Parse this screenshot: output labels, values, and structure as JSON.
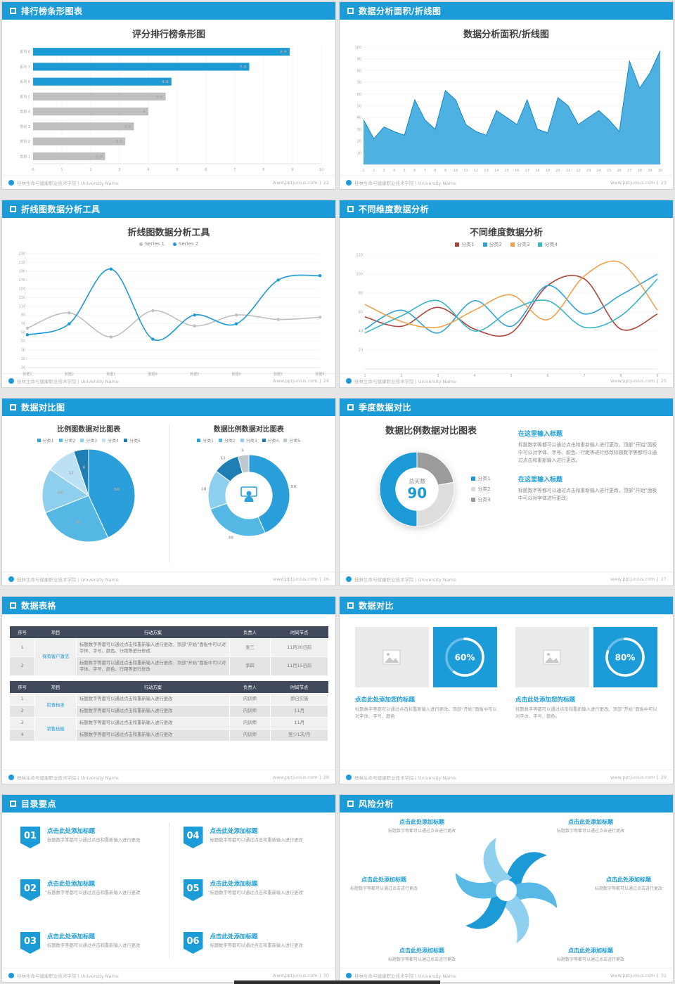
{
  "page": {
    "background": "#E6E6E6",
    "accent": "#1B9BD8"
  },
  "footer": {
    "org": "桂林生命与健康职业技术学院 | University Name",
    "site": "www.pptjunius.com"
  },
  "slides": [
    {
      "header": "排行榜条形图表",
      "page_no": "22",
      "title": "评分排行榜条形图",
      "chart_data": {
        "type": "barh",
        "title": "评分排行榜条形图",
        "categories": [
          "系列 8",
          "系列 7",
          "系列 6",
          "系列 5",
          "类别 4",
          "类别 3",
          "类别 2",
          "类别 1"
        ],
        "values": [
          8.9,
          7.5,
          4.8,
          4.6,
          4,
          3.5,
          3.2,
          2.5
        ],
        "colors": [
          "#1C9AD6",
          "#1C9AD6",
          "#1C9AD6",
          "#BFBFBF",
          "#BFBFBF",
          "#BFBFBF",
          "#BFBFBF",
          "#BFBFBF"
        ],
        "label_colors": [
          "#FFFFFF",
          "#FFFFFF",
          "#FFFFFF",
          "#737373",
          "#737373",
          "#737373",
          "#737373",
          "#737373"
        ],
        "xlim": [
          0,
          10
        ],
        "xticks": [
          0,
          1,
          2,
          3,
          4,
          5,
          6,
          7,
          8,
          9,
          10
        ]
      }
    },
    {
      "header": "数据分析面积/折线图",
      "page_no": "23",
      "title": "数据分析面积/折线图",
      "chart_data": {
        "type": "area",
        "title": "数据分析面积/折线图",
        "x": [
          "1",
          "2",
          "3",
          "4",
          "5",
          "6",
          "7",
          "8",
          "9",
          "10",
          "11",
          "12",
          "13",
          "14",
          "15",
          "16",
          "17",
          "18",
          "19",
          "20",
          "21",
          "22",
          "23",
          "24",
          "25",
          "26",
          "27",
          "28",
          "29",
          "30"
        ],
        "values": [
          38,
          22,
          32,
          28,
          25,
          55,
          38,
          30,
          63,
          55,
          34,
          28,
          25,
          46,
          40,
          34,
          55,
          30,
          27,
          57,
          50,
          34,
          40,
          46,
          38,
          28,
          88,
          65,
          78,
          97
        ],
        "color": "#2FA3DC",
        "ylim": [
          0,
          100
        ],
        "yticks": [
          10,
          20,
          30,
          40,
          50,
          60,
          70,
          80,
          90,
          100
        ]
      }
    },
    {
      "header": "折线图数据分析工具",
      "page_no": "24",
      "title": "折线图数据分析工具",
      "chart_data": {
        "type": "line",
        "title": "折线图数据分析工具",
        "x_labels": [
          "数据1",
          "数据2",
          "数据3",
          "数据4",
          "数据5",
          "数据6",
          "数据7",
          "数据8"
        ],
        "ylim": [
          -30,
          230
        ],
        "yticks": [
          -30,
          -10,
          10,
          30,
          50,
          70,
          90,
          110,
          130,
          150,
          170,
          190,
          210,
          230
        ],
        "smooth": true,
        "markers": true,
        "series": [
          {
            "name": "Series 1",
            "color": "#BFBFBF",
            "values": [
              60,
              95,
              40,
              100,
              65,
              90,
              80,
              85
            ]
          },
          {
            "name": "Series 2",
            "color": "#1C9AD6",
            "values": [
              45,
              70,
              195,
              35,
              90,
              70,
              170,
              180
            ]
          }
        ]
      }
    },
    {
      "header": "不同维度数据分析",
      "page_no": "25",
      "title": "不同维度数据分析",
      "chart_data": {
        "type": "line",
        "title": "不同维度数据分析",
        "x_labels": [
          "1",
          "2",
          "3",
          "4",
          "5",
          "6",
          "7",
          "8",
          "9"
        ],
        "ylim": [
          0,
          120
        ],
        "yticks": [
          20,
          40,
          60,
          80,
          100,
          120
        ],
        "smooth": true,
        "markers": false,
        "series": [
          {
            "name": "分类1",
            "color": "#B0443C",
            "values": [
              55,
              45,
              65,
              42,
              38,
              88,
              95,
              42,
              58
            ]
          },
          {
            "name": "分类2",
            "color": "#2FA3DC",
            "values": [
              42,
              62,
              38,
              72,
              45,
              88,
              58,
              78,
              100
            ]
          },
          {
            "name": "分类3",
            "color": "#F0A24B",
            "values": [
              68,
              50,
              44,
              62,
              78,
              52,
              98,
              112,
              62
            ]
          },
          {
            "name": "分类4",
            "color": "#37B6C5",
            "values": [
              38,
              56,
              72,
              40,
              62,
              72,
              44,
              56,
              95
            ]
          }
        ]
      }
    },
    {
      "header": "数据对比图",
      "page_no": "26",
      "left": {
        "title": "比例图数据对比图表",
        "chart_data": {
          "type": "pie",
          "values": [
            50,
            30,
            18,
            12,
            6
          ],
          "labels": [
            "50",
            "30",
            "18",
            "12",
            "6"
          ],
          "colors": [
            "#2B9FD9",
            "#55B7E4",
            "#8ECFEE",
            "#BCE1F5",
            "#1F7FB5"
          ],
          "label_colors": [
            "#FFFFFF",
            "#FFFFFF",
            "#FFFFFF",
            "#555555",
            "#FFFFFF"
          ],
          "legend": [
            "分类1",
            "分类2",
            "分类3",
            "分类4",
            "分类5"
          ]
        }
      },
      "right": {
        "title": "数据比例数据对比图表",
        "chart_data": {
          "type": "donut",
          "values": [
            50,
            30,
            18,
            12,
            5
          ],
          "labels": [
            "50",
            "30",
            "18",
            "12",
            "5"
          ],
          "colors": [
            "#2B9FD9",
            "#55B7E4",
            "#8ECFEE",
            "#1F7FB5",
            "#BFC8CE"
          ],
          "label_colors": [
            "#666666",
            "#666666",
            "#666666",
            "#666666",
            "#666666"
          ],
          "legend": [
            "分类1",
            "分类2",
            "分类3",
            "分类4",
            "分类5"
          ]
        }
      }
    },
    {
      "header": "季度数据对比",
      "page_no": "27",
      "title": "数据比例数据对比图表",
      "chart_data": {
        "type": "donut",
        "values": [
          22,
          28,
          50
        ],
        "colors": [
          "#9B9B9B",
          "#DDDDDD",
          "#1C9AD6"
        ],
        "legend": [
          "分类1",
          "分类2",
          "分类3"
        ],
        "legend_colors": [
          "#1C9AD6",
          "#DDDDDD",
          "#9B9B9B"
        ],
        "center_label": "总天数",
        "center_value": "90"
      },
      "blocks": [
        {
          "heading": "在这里输入标题",
          "body": "标题数字等都可以通过点击和重新输入进行更改，顶部“开始”面板中可以对字体、字号、颜色、行距等进行修改标题数字等都可以通过点击和重新输入进行更改。"
        },
        {
          "heading": "在这里输入标题",
          "body": "标题数字等都可以通过点击和重新输入进行更改，顶部“开始”面板中可以对字体进行更改。"
        }
      ]
    },
    {
      "header": "数据表格",
      "page_no": "28",
      "table1": {
        "headers": [
          "序号",
          "项目",
          "行动方案",
          "负责人",
          "时间节点"
        ],
        "project": "保有客户激活",
        "rows": [
          [
            "1",
            "标题数字等都可以通过点击和重新输入进行更改，顶部“开始”面板中可以对字体、字号、颜色、行距等进行修改",
            "张三",
            "11月30日前"
          ],
          [
            "2",
            "标题数字等都可以通过点击和重新输入进行更改，顶部“开始”面板中可以对字体、字号、颜色、行距等进行修改",
            "李四",
            "11月15日前"
          ]
        ]
      },
      "table2": {
        "headers": [
          "序号",
          "项目",
          "行动方案",
          "负责人",
          "时间节点"
        ],
        "groups": [
          {
            "project": "检查标准",
            "rows": [
              [
                "1",
                "标题数字等都可以通过点击和重新输入进行更改",
                "内训师",
                "即日实施"
              ],
              [
                "2",
                "标题数字等都可以通过点击和重新输入进行更改",
                "内训师",
                "11月"
              ]
            ]
          },
          {
            "project": "销售技能",
            "rows": [
              [
                "3",
                "标题数字等都可以通过点击和重新输入进行更改",
                "内训师",
                "11月"
              ],
              [
                "4",
                "标题数字等都可以通过点击和重新输入进行更改",
                "内训师",
                "至少1次/月"
              ]
            ]
          }
        ]
      }
    },
    {
      "header": "数据对比",
      "page_no": "29",
      "cards": [
        {
          "ring": {
            "type": "ring",
            "percent": 60
          },
          "title": "点击此处添加您的标题",
          "body": "标题数字等都可以通过点击和重新输入进行更改，顶部“开始”面板中可以对字体、字号、颜色"
        },
        {
          "ring": {
            "type": "ring",
            "percent": 80
          },
          "title": "点击此处添加您的标题",
          "body": "标题数字等都可以通过点击和重新输入进行更改，顶部“开始”面板中可以对字体、字号、颜色。"
        }
      ]
    },
    {
      "header": "目录要点",
      "page_no": "30",
      "items": [
        {
          "num": "01",
          "title": "点击此处添加标题",
          "desc": "标题数字等都可以通过点击和重新输入进行更改"
        },
        {
          "num": "02",
          "title": "点击此处添加标题",
          "desc": "标题数字等都可以通过点击和重新输入进行更改"
        },
        {
          "num": "03",
          "title": "点击此处添加标题",
          "desc": "标题数字等都可以通过点击和重新输入进行更改"
        },
        {
          "num": "04",
          "title": "点击此处添加标题",
          "desc": "标题数字等都可以通过点击和重新输入进行更改"
        },
        {
          "num": "05",
          "title": "点击此处添加标题",
          "desc": "标题数字等都可以通过点击和重新输入进行更改"
        },
        {
          "num": "06",
          "title": "点击此处添加标题",
          "desc": "标题数字等都可以通过点击和重新输入进行更改"
        }
      ]
    },
    {
      "header": "风险分析",
      "page_no": "31",
      "labels": [
        {
          "title": "点击此处添加标题",
          "desc": "标题数字等都可以通过点击进行更改"
        },
        {
          "title": "点击此处添加标题",
          "desc": "标题数字等都可以通过点击进行更改"
        },
        {
          "title": "点击此处添加标题",
          "desc": "标题数字等都可以通过点击进行更改"
        },
        {
          "title": "点击此处添加标题",
          "desc": "标题数字等都可以通过点击进行更改"
        },
        {
          "title": "点击此处添加标题",
          "desc": "标题数字等都可以通过点击进行更改"
        },
        {
          "title": "点击此处添加标题",
          "desc": "标题数字等都可以通过点击进行更改"
        }
      ],
      "icons": [
        "¥",
        "$",
        "€",
        "%",
        "≡",
        "◔"
      ]
    }
  ]
}
